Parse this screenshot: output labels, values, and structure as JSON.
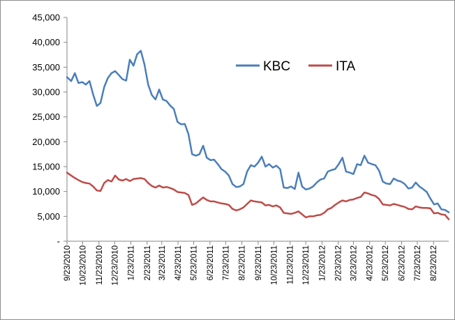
{
  "chart_data": {
    "type": "line",
    "title": "",
    "xlabel": "",
    "ylabel": "",
    "ylim": [
      0,
      45000
    ],
    "y_ticks": [
      0,
      5000,
      10000,
      15000,
      20000,
      25000,
      30000,
      35000,
      40000,
      45000
    ],
    "y_tick_labels": [
      "-",
      "5,000",
      "10,000",
      "15,000",
      "20,000",
      "25,000",
      "30,000",
      "35,000",
      "40,000",
      "45,000"
    ],
    "x_range": [
      "9/23/2010",
      "9/21/2012"
    ],
    "x_tick_labels": [
      "9/23/2010",
      "10/23/2010",
      "11/23/2010",
      "12/23/2010",
      "1/23/2011",
      "2/23/2011",
      "3/23/2011",
      "4/23/2011",
      "5/23/2011",
      "6/23/2011",
      "7/23/2011",
      "8/23/2011",
      "9/23/2011",
      "10/23/2011",
      "11/23/2011",
      "12/23/2011",
      "1/23/2012",
      "2/23/2012",
      "3/23/2012",
      "4/23/2012",
      "5/23/2012",
      "6/23/2012",
      "7/23/2012",
      "8/23/2012"
    ],
    "grid": false,
    "legend_position": "top-right",
    "series": [
      {
        "name": "KBC",
        "color": "#4a7ebb",
        "points": [
          [
            "9/23/2010",
            33000
          ],
          [
            "10/1/2010",
            32200
          ],
          [
            "10/8/2010",
            33800
          ],
          [
            "10/15/2010",
            31800
          ],
          [
            "10/22/2010",
            32000
          ],
          [
            "10/29/2010",
            31500
          ],
          [
            "11/5/2010",
            32200
          ],
          [
            "11/12/2010",
            29500
          ],
          [
            "11/19/2010",
            27200
          ],
          [
            "11/26/2010",
            27800
          ],
          [
            "12/3/2010",
            31000
          ],
          [
            "12/10/2010",
            32800
          ],
          [
            "12/17/2010",
            33800
          ],
          [
            "12/24/2010",
            34200
          ],
          [
            "12/31/2010",
            33400
          ],
          [
            "1/7/2011",
            32600
          ],
          [
            "1/14/2011",
            32300
          ],
          [
            "1/21/2011",
            36500
          ],
          [
            "1/28/2011",
            35300
          ],
          [
            "2/4/2011",
            37600
          ],
          [
            "2/11/2011",
            38300
          ],
          [
            "2/18/2011",
            35500
          ],
          [
            "2/25/2011",
            31500
          ],
          [
            "3/4/2011",
            29400
          ],
          [
            "3/11/2011",
            28500
          ],
          [
            "3/18/2011",
            30500
          ],
          [
            "3/25/2011",
            28500
          ],
          [
            "4/1/2011",
            28200
          ],
          [
            "4/8/2011",
            27300
          ],
          [
            "4/15/2011",
            26600
          ],
          [
            "4/22/2011",
            24000
          ],
          [
            "4/29/2011",
            23500
          ],
          [
            "5/6/2011",
            23600
          ],
          [
            "5/13/2011",
            21500
          ],
          [
            "5/20/2011",
            17500
          ],
          [
            "5/27/2011",
            17200
          ],
          [
            "6/3/2011",
            17500
          ],
          [
            "6/10/2011",
            19200
          ],
          [
            "6/17/2011",
            16800
          ],
          [
            "6/24/2011",
            16300
          ],
          [
            "7/1/2011",
            16400
          ],
          [
            "7/8/2011",
            15500
          ],
          [
            "7/15/2011",
            14500
          ],
          [
            "7/22/2011",
            14000
          ],
          [
            "7/29/2011",
            13200
          ],
          [
            "8/5/2011",
            11500
          ],
          [
            "8/12/2011",
            10900
          ],
          [
            "8/19/2011",
            11000
          ],
          [
            "8/26/2011",
            11500
          ],
          [
            "9/2/2011",
            14000
          ],
          [
            "9/9/2011",
            15300
          ],
          [
            "9/16/2011",
            15000
          ],
          [
            "9/23/2011",
            15800
          ],
          [
            "9/30/2011",
            17000
          ],
          [
            "10/7/2011",
            15000
          ],
          [
            "10/14/2011",
            15500
          ],
          [
            "10/21/2011",
            14800
          ],
          [
            "10/28/2011",
            15200
          ],
          [
            "11/4/2011",
            14500
          ],
          [
            "11/11/2011",
            10800
          ],
          [
            "11/18/2011",
            10700
          ],
          [
            "11/25/2011",
            11000
          ],
          [
            "12/2/2011",
            10500
          ],
          [
            "12/9/2011",
            13800
          ],
          [
            "12/16/2011",
            11000
          ],
          [
            "12/23/2011",
            10400
          ],
          [
            "12/30/2011",
            10600
          ],
          [
            "1/6/2012",
            11000
          ],
          [
            "1/13/2012",
            11800
          ],
          [
            "1/20/2012",
            12400
          ],
          [
            "1/27/2012",
            12600
          ],
          [
            "2/3/2012",
            14000
          ],
          [
            "2/10/2012",
            14300
          ],
          [
            "2/17/2012",
            14500
          ],
          [
            "2/24/2012",
            15500
          ],
          [
            "3/2/2012",
            16800
          ],
          [
            "3/9/2012",
            14000
          ],
          [
            "3/16/2012",
            13800
          ],
          [
            "3/23/2012",
            13500
          ],
          [
            "3/30/2012",
            15500
          ],
          [
            "4/6/2012",
            15300
          ],
          [
            "4/13/2012",
            17200
          ],
          [
            "4/20/2012",
            15800
          ],
          [
            "4/27/2012",
            15500
          ],
          [
            "5/4/2012",
            15300
          ],
          [
            "5/11/2012",
            14200
          ],
          [
            "5/18/2012",
            12000
          ],
          [
            "5/25/2012",
            11600
          ],
          [
            "6/1/2012",
            11500
          ],
          [
            "6/8/2012",
            12600
          ],
          [
            "6/15/2012",
            12200
          ],
          [
            "6/22/2012",
            12000
          ],
          [
            "6/29/2012",
            11500
          ],
          [
            "7/6/2012",
            10600
          ],
          [
            "7/13/2012",
            10800
          ],
          [
            "7/20/2012",
            11800
          ],
          [
            "7/27/2012",
            11000
          ],
          [
            "8/3/2012",
            10500
          ],
          [
            "8/10/2012",
            9900
          ],
          [
            "8/17/2012",
            8600
          ],
          [
            "8/24/2012",
            7400
          ],
          [
            "8/31/2012",
            7600
          ],
          [
            "9/7/2012",
            6400
          ],
          [
            "9/14/2012",
            6300
          ],
          [
            "9/21/2012",
            5800
          ]
        ]
      },
      {
        "name": "ITA",
        "color": "#be4b48",
        "points": [
          [
            "9/23/2010",
            13800
          ],
          [
            "10/1/2010",
            13200
          ],
          [
            "10/8/2010",
            12700
          ],
          [
            "10/15/2010",
            12300
          ],
          [
            "10/22/2010",
            11900
          ],
          [
            "10/29/2010",
            11700
          ],
          [
            "11/5/2010",
            11600
          ],
          [
            "11/12/2010",
            11000
          ],
          [
            "11/19/2010",
            10200
          ],
          [
            "11/26/2010",
            10100
          ],
          [
            "12/3/2010",
            11700
          ],
          [
            "12/10/2010",
            12300
          ],
          [
            "12/17/2010",
            12000
          ],
          [
            "12/24/2010",
            13200
          ],
          [
            "12/31/2010",
            12400
          ],
          [
            "1/7/2011",
            12200
          ],
          [
            "1/14/2011",
            12500
          ],
          [
            "1/21/2011",
            12100
          ],
          [
            "1/28/2011",
            12500
          ],
          [
            "2/4/2011",
            12600
          ],
          [
            "2/11/2011",
            12700
          ],
          [
            "2/18/2011",
            12500
          ],
          [
            "2/25/2011",
            11700
          ],
          [
            "3/4/2011",
            11100
          ],
          [
            "3/11/2011",
            10800
          ],
          [
            "3/18/2011",
            11200
          ],
          [
            "3/25/2011",
            10800
          ],
          [
            "4/1/2011",
            10900
          ],
          [
            "4/8/2011",
            10700
          ],
          [
            "4/15/2011",
            10400
          ],
          [
            "4/22/2011",
            9900
          ],
          [
            "4/29/2011",
            9800
          ],
          [
            "5/6/2011",
            9700
          ],
          [
            "5/13/2011",
            9300
          ],
          [
            "5/20/2011",
            7300
          ],
          [
            "5/27/2011",
            7600
          ],
          [
            "6/3/2011",
            8200
          ],
          [
            "6/10/2011",
            8800
          ],
          [
            "6/17/2011",
            8300
          ],
          [
            "6/24/2011",
            8000
          ],
          [
            "7/1/2011",
            8000
          ],
          [
            "7/8/2011",
            7800
          ],
          [
            "7/15/2011",
            7600
          ],
          [
            "7/22/2011",
            7500
          ],
          [
            "7/29/2011",
            7300
          ],
          [
            "8/5/2011",
            6500
          ],
          [
            "8/12/2011",
            6200
          ],
          [
            "8/19/2011",
            6400
          ],
          [
            "8/26/2011",
            6800
          ],
          [
            "9/2/2011",
            7500
          ],
          [
            "9/9/2011",
            8200
          ],
          [
            "9/16/2011",
            8000
          ],
          [
            "9/23/2011",
            7900
          ],
          [
            "9/30/2011",
            7800
          ],
          [
            "10/7/2011",
            7200
          ],
          [
            "10/14/2011",
            7300
          ],
          [
            "10/21/2011",
            7000
          ],
          [
            "10/28/2011",
            7200
          ],
          [
            "11/4/2011",
            6800
          ],
          [
            "11/11/2011",
            5700
          ],
          [
            "11/18/2011",
            5600
          ],
          [
            "11/25/2011",
            5500
          ],
          [
            "12/2/2011",
            5700
          ],
          [
            "12/9/2011",
            6000
          ],
          [
            "12/16/2011",
            5400
          ],
          [
            "12/23/2011",
            4800
          ],
          [
            "12/30/2011",
            5000
          ],
          [
            "1/6/2012",
            5000
          ],
          [
            "1/13/2012",
            5200
          ],
          [
            "1/20/2012",
            5300
          ],
          [
            "1/27/2012",
            5700
          ],
          [
            "2/3/2012",
            6400
          ],
          [
            "2/10/2012",
            6700
          ],
          [
            "2/17/2012",
            7300
          ],
          [
            "2/24/2012",
            7800
          ],
          [
            "3/2/2012",
            8200
          ],
          [
            "3/9/2012",
            8000
          ],
          [
            "3/16/2012",
            8300
          ],
          [
            "3/23/2012",
            8400
          ],
          [
            "3/30/2012",
            8700
          ],
          [
            "4/6/2012",
            8900
          ],
          [
            "4/13/2012",
            9800
          ],
          [
            "4/20/2012",
            9600
          ],
          [
            "4/27/2012",
            9300
          ],
          [
            "5/4/2012",
            9100
          ],
          [
            "5/11/2012",
            8500
          ],
          [
            "5/18/2012",
            7400
          ],
          [
            "5/25/2012",
            7300
          ],
          [
            "6/1/2012",
            7200
          ],
          [
            "6/8/2012",
            7500
          ],
          [
            "6/15/2012",
            7300
          ],
          [
            "6/22/2012",
            7100
          ],
          [
            "6/29/2012",
            6900
          ],
          [
            "7/6/2012",
            6500
          ],
          [
            "7/13/2012",
            6400
          ],
          [
            "7/20/2012",
            7000
          ],
          [
            "7/27/2012",
            6800
          ],
          [
            "8/3/2012",
            6700
          ],
          [
            "8/10/2012",
            6700
          ],
          [
            "8/17/2012",
            6600
          ],
          [
            "8/24/2012",
            5600
          ],
          [
            "8/31/2012",
            5700
          ],
          [
            "9/7/2012",
            5400
          ],
          [
            "9/14/2012",
            5300
          ],
          [
            "9/21/2012",
            4400
          ]
        ]
      }
    ]
  }
}
